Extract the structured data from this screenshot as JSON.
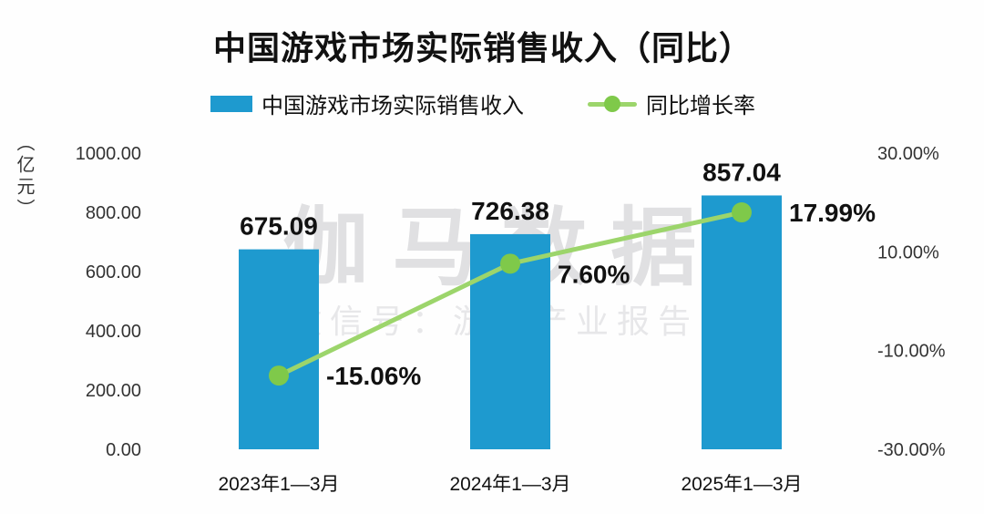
{
  "watermark": {
    "main": "伽马数据",
    "sub": "微信号：游戏产业报告"
  },
  "chart_data": {
    "type": "bar",
    "subtype": "combo-bar-line-dual-axis",
    "title": "中国游戏市场实际销售收入（同比）",
    "categories": [
      "2023年1—3月",
      "2024年1—3月",
      "2025年1—3月"
    ],
    "series": [
      {
        "name": "中国游戏市场实际销售收入",
        "type": "bar",
        "axis": "left",
        "values": [
          675.09,
          726.38,
          857.04
        ],
        "labels": [
          "675.09",
          "726.38",
          "857.04"
        ],
        "color": "#1E9ACF"
      },
      {
        "name": "同比增长率",
        "type": "line",
        "axis": "right",
        "values": [
          -15.06,
          7.6,
          17.99
        ],
        "labels": [
          "-15.06%",
          "7.60%",
          "17.99%"
        ],
        "color": "#8FCE4E",
        "line_color": "#9CD56B",
        "marker_color": "#7FC94A"
      }
    ],
    "left_axis": {
      "unit": "（亿元）",
      "min": 0,
      "max": 1000,
      "ticks": [
        1000,
        800,
        600,
        400,
        200,
        0
      ],
      "tick_labels": [
        "1000.00",
        "800.00",
        "600.00",
        "400.00",
        "200.00",
        "0.00"
      ]
    },
    "right_axis": {
      "min": -30,
      "max": 30,
      "ticks": [
        30,
        10,
        -10,
        -30
      ],
      "tick_labels": [
        "30.00%",
        "10.00%",
        "-10.00%",
        "-30.00%"
      ]
    },
    "legend_position": "top",
    "grid": false,
    "text_color": "#111111",
    "tick_color": "#333333"
  }
}
